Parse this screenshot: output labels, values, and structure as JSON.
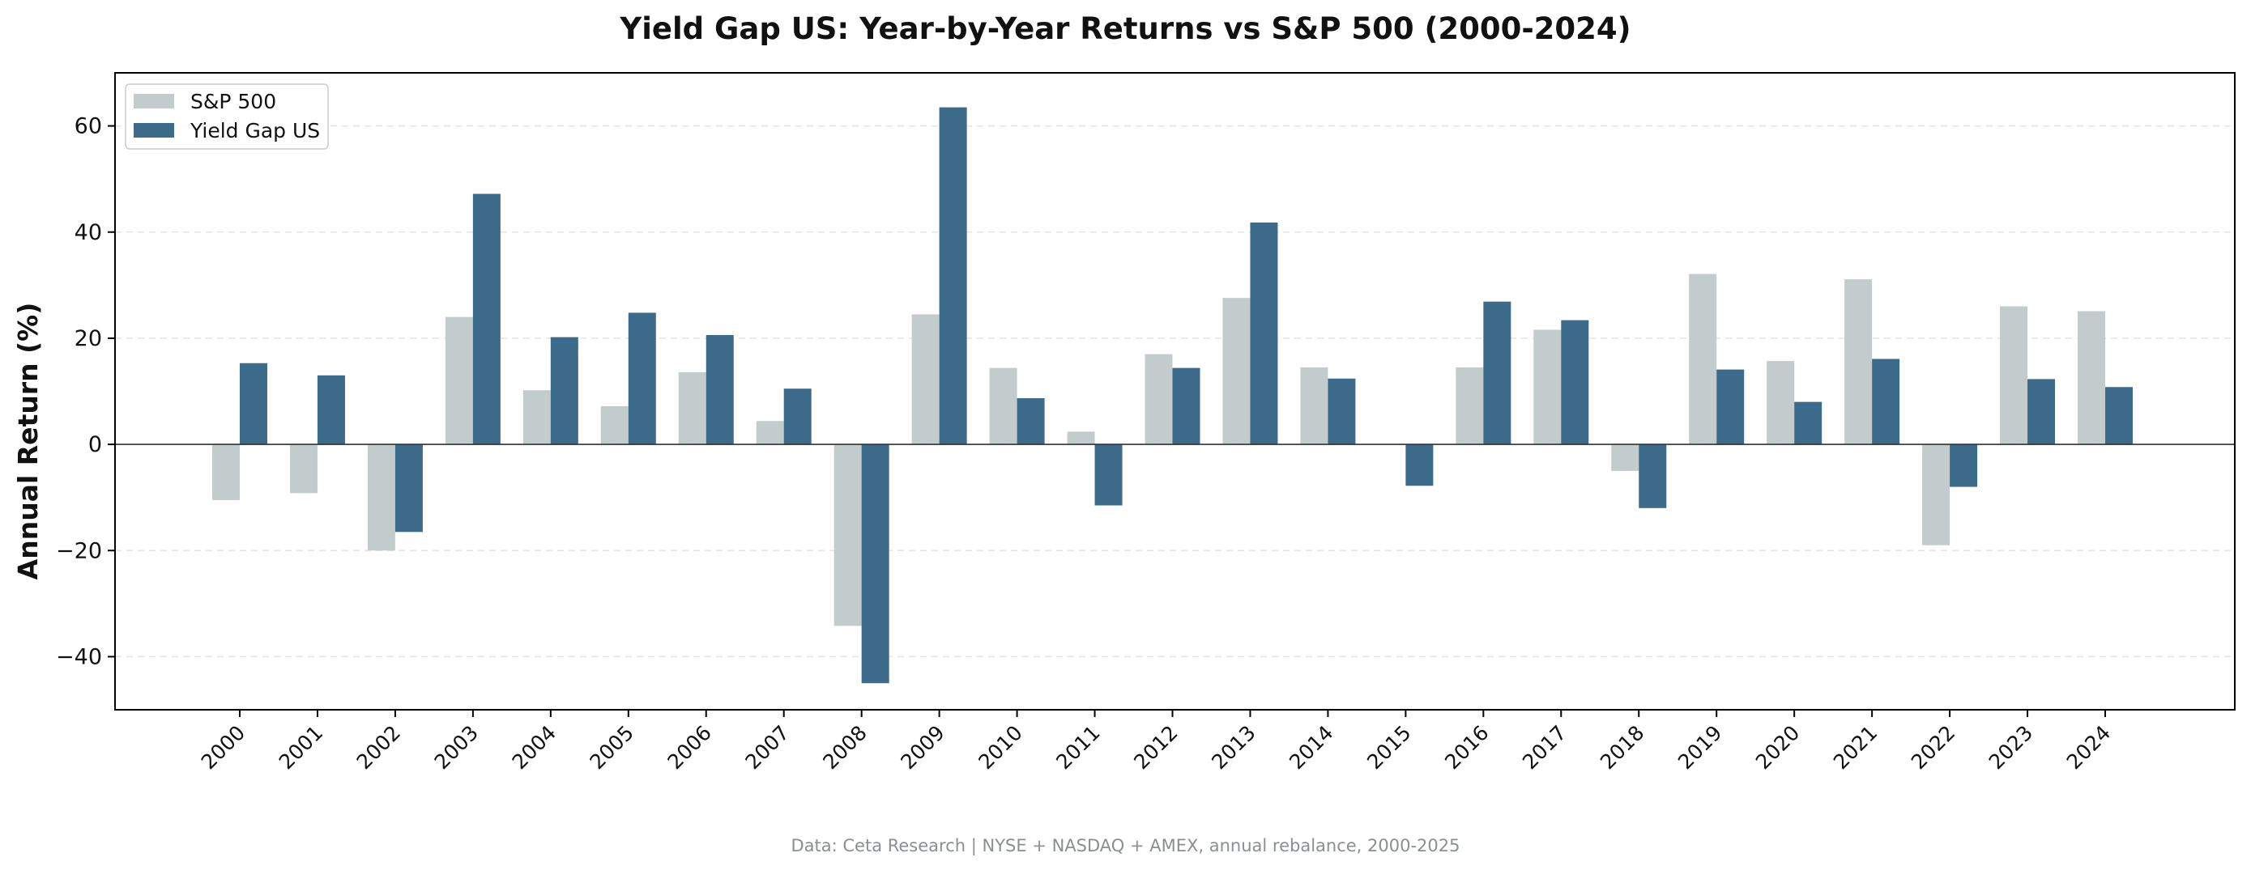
{
  "chart_data": {
    "type": "bar",
    "title": "Yield Gap US: Year-by-Year Returns vs S&P 500 (2000-2024)",
    "xlabel": "",
    "ylabel": "Annual Return (%)",
    "ylim": [
      -50,
      70
    ],
    "yticks": [
      -40,
      -20,
      0,
      20,
      40,
      60
    ],
    "ytick_labels": [
      "−40",
      "−20",
      "0",
      "20",
      "40",
      "60"
    ],
    "grid": "horizontal dashed",
    "legend_position": "top-left",
    "categories": [
      "2000",
      "2001",
      "2002",
      "2003",
      "2004",
      "2005",
      "2006",
      "2007",
      "2008",
      "2009",
      "2010",
      "2011",
      "2012",
      "2013",
      "2014",
      "2015",
      "2016",
      "2017",
      "2018",
      "2019",
      "2020",
      "2021",
      "2022",
      "2023",
      "2024"
    ],
    "series": [
      {
        "name": "S&P 500",
        "color": "#c3cccd",
        "values": [
          -10.5,
          -9.2,
          -20.0,
          24.0,
          10.2,
          7.2,
          13.6,
          4.4,
          -34.2,
          24.5,
          14.4,
          2.4,
          17.0,
          27.6,
          14.5,
          0.0,
          14.5,
          21.6,
          -5.0,
          32.1,
          15.7,
          31.1,
          -19.0,
          26.0,
          25.1
        ]
      },
      {
        "name": "Yield Gap US",
        "color": "#3d6b8b",
        "values": [
          15.3,
          13.0,
          -16.5,
          47.2,
          20.2,
          24.8,
          20.6,
          10.5,
          -45.0,
          63.5,
          8.7,
          -11.5,
          14.4,
          41.8,
          12.4,
          -7.8,
          26.9,
          23.4,
          -12.0,
          14.1,
          8.0,
          16.1,
          -8.0,
          12.3,
          10.8
        ]
      }
    ],
    "footer": "Data: Ceta Research | NYSE + NASDAQ + AMEX, annual rebalance, 2000-2025"
  }
}
